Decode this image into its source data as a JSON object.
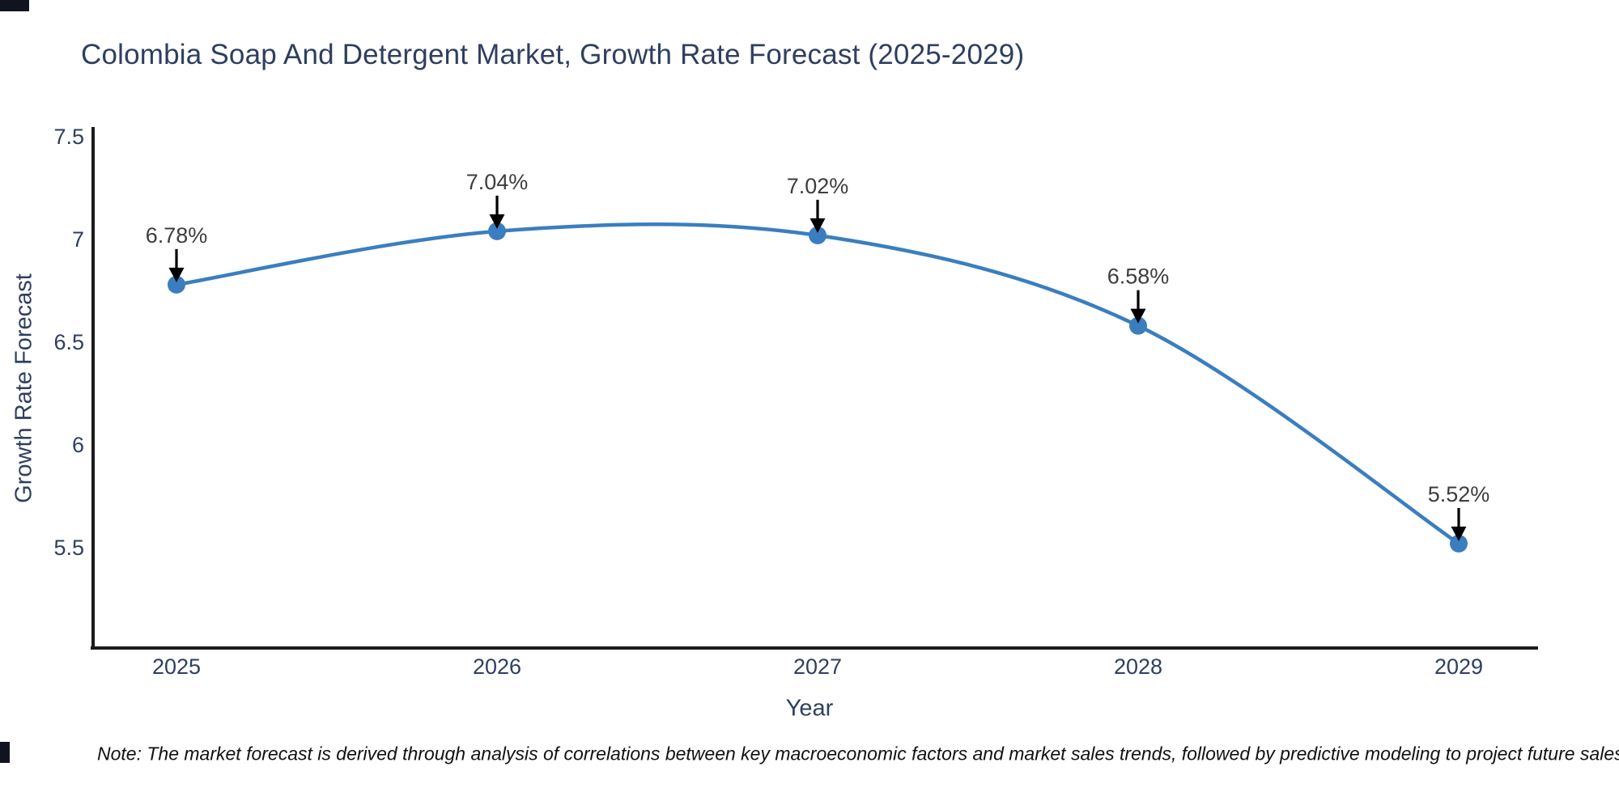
{
  "note": "Note: The market forecast is derived through analysis of correlations between key macroeconomic factors and market sales trends, followed by predictive modeling to project future sales",
  "chart_data": {
    "type": "line",
    "title": "Colombia Soap And Detergent Market, Growth Rate Forecast (2025-2029)",
    "xlabel": "Year",
    "ylabel": "Growth Rate Forecast",
    "categories": [
      "2025",
      "2026",
      "2027",
      "2028",
      "2029"
    ],
    "values": [
      6.78,
      7.04,
      7.02,
      6.58,
      5.52
    ],
    "point_labels": [
      "6.78%",
      "7.04%",
      "7.02%",
      "6.58%",
      "5.52%"
    ],
    "yticks": [
      7.5,
      7,
      6.5,
      6,
      5.5
    ],
    "ylim": [
      5.0,
      7.54
    ],
    "grid": false,
    "legend": false,
    "smooth": true,
    "colors": {
      "line": "#3a7ebf",
      "marker": "#3a7ebf",
      "axis": "#1b1b1b",
      "arrow": "#000000",
      "tick_text": "#2e3f5f",
      "label_text": "#3d3d3d"
    }
  }
}
